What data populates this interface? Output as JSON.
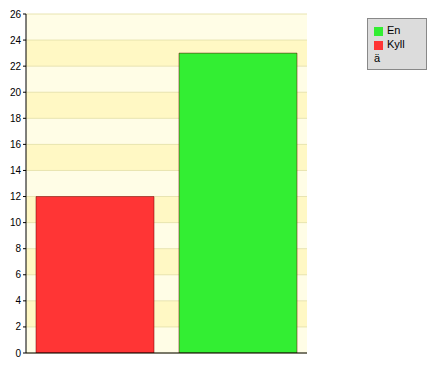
{
  "chart_data": {
    "type": "bar",
    "categories": [
      null
    ],
    "series": [
      {
        "name": "Kyllä",
        "color": "#ff3535",
        "values": [
          12
        ]
      },
      {
        "name": "En",
        "color": "#33ee33",
        "values": [
          23
        ]
      }
    ],
    "ylim": [
      0,
      26
    ],
    "yticks": [
      0,
      2,
      4,
      6,
      8,
      10,
      12,
      14,
      16,
      18,
      20,
      22,
      24,
      26
    ],
    "grid": true,
    "legend": "top-right",
    "tick_labels": "y"
  }
}
